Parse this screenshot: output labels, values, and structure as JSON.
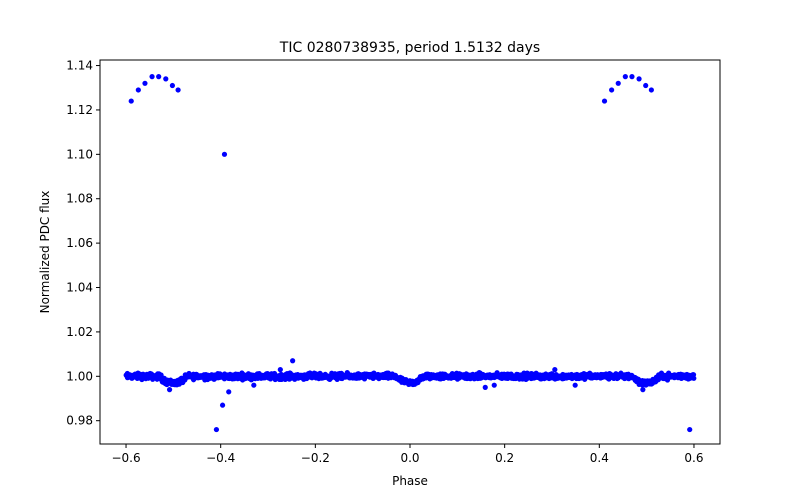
{
  "chart_data": {
    "type": "scatter",
    "title": "TIC 0280738935, period 1.5132 days",
    "xlabel": "Phase",
    "ylabel": "Normalized PDC flux",
    "xlim": [
      -0.655,
      0.655
    ],
    "ylim": [
      0.9695,
      1.1425
    ],
    "grid": false,
    "legend": "none",
    "marker_color": "#0000ff",
    "x_ticks": [
      -0.6,
      -0.4,
      -0.2,
      0.0,
      0.2,
      0.4,
      0.6
    ],
    "x_tick_labels": [
      "−0.6",
      "−0.4",
      "−0.2",
      "0.0",
      "0.2",
      "0.4",
      "0.6"
    ],
    "y_ticks": [
      0.98,
      1.0,
      1.02,
      1.04,
      1.06,
      1.08,
      1.1,
      1.12,
      1.14
    ],
    "y_tick_labels": [
      "0.98",
      "1.00",
      "1.02",
      "1.04",
      "1.06",
      "1.08",
      "1.10",
      "1.12",
      "1.14"
    ],
    "outlier_points": [
      {
        "x": -0.589,
        "y": 1.124
      },
      {
        "x": -0.574,
        "y": 1.129
      },
      {
        "x": -0.56,
        "y": 1.132
      },
      {
        "x": -0.545,
        "y": 1.135
      },
      {
        "x": -0.531,
        "y": 1.135
      },
      {
        "x": -0.516,
        "y": 1.134
      },
      {
        "x": -0.502,
        "y": 1.131
      },
      {
        "x": -0.49,
        "y": 1.129
      },
      {
        "x": 0.411,
        "y": 1.124
      },
      {
        "x": 0.426,
        "y": 1.129
      },
      {
        "x": 0.44,
        "y": 1.132
      },
      {
        "x": 0.455,
        "y": 1.135
      },
      {
        "x": 0.469,
        "y": 1.135
      },
      {
        "x": 0.484,
        "y": 1.134
      },
      {
        "x": 0.498,
        "y": 1.131
      },
      {
        "x": 0.51,
        "y": 1.129
      },
      {
        "x": -0.392,
        "y": 1.1
      },
      {
        "x": -0.248,
        "y": 1.007
      },
      {
        "x": -0.409,
        "y": 0.976
      },
      {
        "x": 0.591,
        "y": 0.976
      },
      {
        "x": -0.396,
        "y": 0.987
      },
      {
        "x": -0.383,
        "y": 0.993
      },
      {
        "x": -0.508,
        "y": 0.994
      },
      {
        "x": 0.492,
        "y": 0.994
      },
      {
        "x": 0.159,
        "y": 0.995
      },
      {
        "x": 0.349,
        "y": 0.996
      },
      {
        "x": -0.33,
        "y": 0.996
      },
      {
        "x": 0.178,
        "y": 0.996
      },
      {
        "x": 0.306,
        "y": 1.003
      },
      {
        "x": -0.274,
        "y": 1.003
      }
    ],
    "baseline_band": {
      "x_range": [
        -0.6,
        0.6
      ],
      "y_center": 1.0,
      "y_scatter": 0.0012,
      "transit_centers": [
        -0.5,
        0.0,
        0.5
      ],
      "transit_depth": 0.003,
      "transit_half_width": 0.03
    }
  }
}
